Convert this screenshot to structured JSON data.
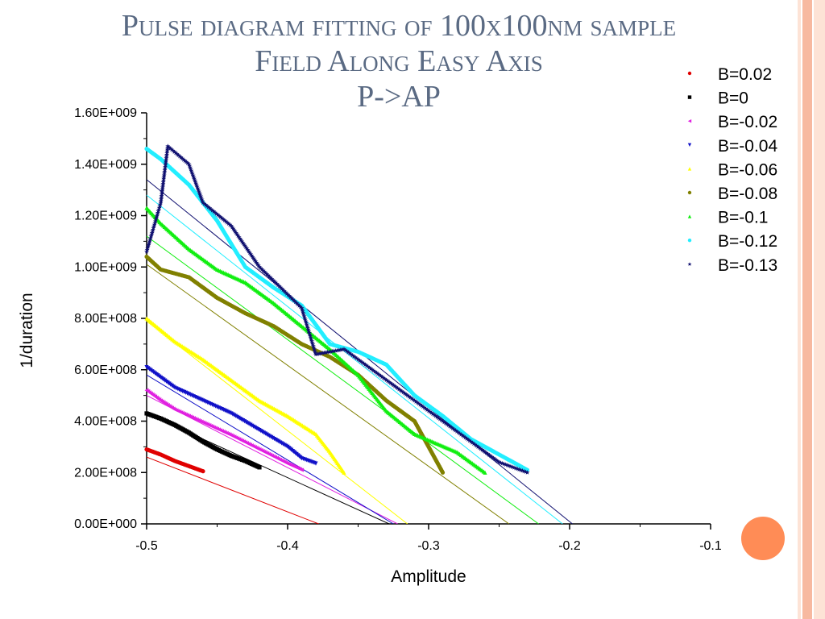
{
  "title_lines": [
    "Pulse diagram fitting of 100x100nm sample",
    "Field Along Easy Axis",
    "P->AP"
  ],
  "colors": {
    "title": "#5a6a83",
    "stripe_light": "#fde3d6",
    "stripe_mid": "#f7b9a0",
    "accent_dot": "#ff8c56"
  },
  "chart_data": {
    "type": "scatter",
    "xlabel": "Amplitude",
    "ylabel": "1/duration",
    "xlim": [
      -0.5,
      -0.1
    ],
    "ylim": [
      0,
      1600000000
    ],
    "x_ticks": [
      -0.5,
      -0.4,
      -0.3,
      -0.2,
      -0.1
    ],
    "x_tick_labels": [
      "-0.5",
      "-0.4",
      "-0.3",
      "-0.2",
      "-0.1"
    ],
    "y_ticks": [
      0,
      200000000,
      400000000,
      600000000,
      800000000,
      1000000000,
      1200000000,
      1400000000,
      1600000000
    ],
    "y_tick_labels": [
      "0.00E+000",
      "2.00E+008",
      "4.00E+008",
      "6.00E+008",
      "8.00E+008",
      "1.00E+009",
      "1.20E+009",
      "1.40E+009",
      "1.60E+009"
    ],
    "grid": false,
    "legend_position": "top-right",
    "series": [
      {
        "name": "B=0.02",
        "color": "#e00000",
        "marker": "circle",
        "points": [
          [
            -0.5,
            290000000
          ],
          [
            -0.49,
            270000000
          ],
          [
            -0.48,
            245000000
          ],
          [
            -0.47,
            225000000
          ],
          [
            -0.46,
            205000000
          ]
        ],
        "fit": [
          [
            -0.5,
            260000000
          ],
          [
            -0.378,
            0
          ]
        ]
      },
      {
        "name": "B=0",
        "color": "#000000",
        "marker": "square",
        "points": [
          [
            -0.5,
            430000000
          ],
          [
            -0.49,
            410000000
          ],
          [
            -0.48,
            385000000
          ],
          [
            -0.47,
            355000000
          ],
          [
            -0.46,
            320000000
          ],
          [
            -0.45,
            290000000
          ],
          [
            -0.44,
            265000000
          ],
          [
            -0.43,
            245000000
          ],
          [
            -0.42,
            220000000
          ]
        ],
        "fit": [
          [
            -0.5,
            430000000
          ],
          [
            -0.328,
            0
          ]
        ]
      },
      {
        "name": "B=-0.02",
        "color": "#e020e0",
        "marker": "triangle-left",
        "points": [
          [
            -0.5,
            520000000
          ],
          [
            -0.49,
            480000000
          ],
          [
            -0.48,
            445000000
          ],
          [
            -0.46,
            395000000
          ],
          [
            -0.44,
            345000000
          ],
          [
            -0.42,
            290000000
          ],
          [
            -0.4,
            235000000
          ],
          [
            -0.39,
            210000000
          ]
        ],
        "fit": [
          [
            -0.5,
            500000000
          ],
          [
            -0.322,
            0
          ]
        ]
      },
      {
        "name": "B=-0.04",
        "color": "#1010c8",
        "marker": "triangle-down",
        "points": [
          [
            -0.5,
            610000000
          ],
          [
            -0.49,
            570000000
          ],
          [
            -0.48,
            530000000
          ],
          [
            -0.46,
            480000000
          ],
          [
            -0.44,
            430000000
          ],
          [
            -0.42,
            365000000
          ],
          [
            -0.4,
            300000000
          ],
          [
            -0.39,
            255000000
          ],
          [
            -0.38,
            235000000
          ]
        ],
        "fit": [
          [
            -0.5,
            580000000
          ],
          [
            -0.325,
            0
          ]
        ]
      },
      {
        "name": "B=-0.06",
        "color": "#ffff00",
        "marker": "triangle-up",
        "points": [
          [
            -0.5,
            800000000
          ],
          [
            -0.48,
            710000000
          ],
          [
            -0.46,
            640000000
          ],
          [
            -0.44,
            560000000
          ],
          [
            -0.42,
            480000000
          ],
          [
            -0.4,
            420000000
          ],
          [
            -0.38,
            350000000
          ],
          [
            -0.37,
            280000000
          ],
          [
            -0.36,
            200000000
          ]
        ],
        "fit": [
          [
            -0.5,
            790000000
          ],
          [
            -0.315,
            0
          ]
        ]
      },
      {
        "name": "B=-0.08",
        "color": "#808000",
        "marker": "circle",
        "points": [
          [
            -0.5,
            1040000000
          ],
          [
            -0.49,
            990000000
          ],
          [
            -0.47,
            960000000
          ],
          [
            -0.45,
            880000000
          ],
          [
            -0.43,
            820000000
          ],
          [
            -0.41,
            770000000
          ],
          [
            -0.39,
            700000000
          ],
          [
            -0.37,
            650000000
          ],
          [
            -0.35,
            580000000
          ],
          [
            -0.33,
            480000000
          ],
          [
            -0.31,
            400000000
          ],
          [
            -0.29,
            200000000
          ]
        ],
        "fit": [
          [
            -0.5,
            1010000000
          ],
          [
            -0.243,
            0
          ]
        ]
      },
      {
        "name": "B=-0.1",
        "color": "#11ee11",
        "marker": "triangle-up",
        "points": [
          [
            -0.5,
            1230000000
          ],
          [
            -0.49,
            1170000000
          ],
          [
            -0.47,
            1070000000
          ],
          [
            -0.45,
            990000000
          ],
          [
            -0.43,
            940000000
          ],
          [
            -0.41,
            860000000
          ],
          [
            -0.39,
            770000000
          ],
          [
            -0.37,
            680000000
          ],
          [
            -0.35,
            580000000
          ],
          [
            -0.33,
            440000000
          ],
          [
            -0.31,
            350000000
          ],
          [
            -0.28,
            280000000
          ],
          [
            -0.26,
            200000000
          ]
        ],
        "fit": [
          [
            -0.5,
            1120000000
          ],
          [
            -0.222,
            0
          ]
        ]
      },
      {
        "name": "B=-0.12",
        "color": "#22eeff",
        "marker": "circle",
        "points": [
          [
            -0.5,
            1460000000
          ],
          [
            -0.49,
            1420000000
          ],
          [
            -0.47,
            1320000000
          ],
          [
            -0.45,
            1180000000
          ],
          [
            -0.43,
            1000000000
          ],
          [
            -0.41,
            920000000
          ],
          [
            -0.39,
            850000000
          ],
          [
            -0.37,
            700000000
          ],
          [
            -0.35,
            670000000
          ],
          [
            -0.33,
            620000000
          ],
          [
            -0.31,
            500000000
          ],
          [
            -0.29,
            420000000
          ],
          [
            -0.27,
            330000000
          ],
          [
            -0.25,
            270000000
          ],
          [
            -0.23,
            210000000
          ]
        ],
        "fit": [
          [
            -0.5,
            1280000000
          ],
          [
            -0.205,
            0
          ]
        ]
      },
      {
        "name": "B=-0.13",
        "color": "#101070",
        "marker": "star",
        "points": [
          [
            -0.5,
            1060000000
          ],
          [
            -0.49,
            1250000000
          ],
          [
            -0.485,
            1470000000
          ],
          [
            -0.47,
            1400000000
          ],
          [
            -0.46,
            1250000000
          ],
          [
            -0.44,
            1160000000
          ],
          [
            -0.42,
            1000000000
          ],
          [
            -0.39,
            840000000
          ],
          [
            -0.38,
            660000000
          ],
          [
            -0.36,
            680000000
          ],
          [
            -0.33,
            560000000
          ],
          [
            -0.31,
            480000000
          ],
          [
            -0.29,
            400000000
          ],
          [
            -0.27,
            320000000
          ],
          [
            -0.25,
            240000000
          ],
          [
            -0.23,
            200000000
          ]
        ],
        "fit": [
          [
            -0.5,
            1340000000
          ],
          [
            -0.198,
            0
          ]
        ]
      }
    ]
  }
}
